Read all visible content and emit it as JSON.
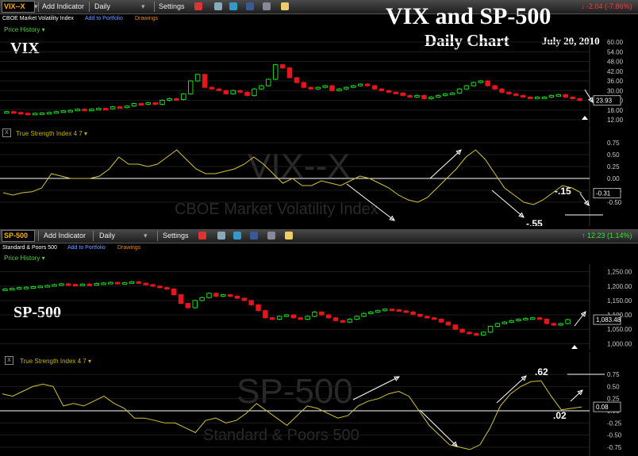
{
  "header": {
    "title": "VIX and SP-500",
    "subtitle": "Daily Chart",
    "date": "July 20, 2010"
  },
  "toolbar": {
    "add_indicator": "Add Indicator",
    "interval": "Daily",
    "settings": "Settings",
    "add_to_portfolio": "Add to Portfolio",
    "drawings": "Drawings",
    "price_history": "Price History ▾"
  },
  "vix": {
    "symbol": "VIX--X",
    "name": "CBOE Market Volatility Index",
    "change": "↓ -2.04 (-7.86%)",
    "panel_label": "VIX",
    "watermark": "VIX--X",
    "watermark_sub": "CBOE Market Volatility Index",
    "indicator_name": "True Strength Index 4 7 ▾",
    "last_price": "23.93",
    "tsi_last": "-0.31",
    "annot_low": "-.55",
    "annot_high": "-.15"
  },
  "spx": {
    "symbol": "SP-500",
    "name": "Standard & Poors 500",
    "change": "↑ 12.23 (1.14%)",
    "panel_label": "SP-500",
    "watermark": "SP-500",
    "watermark_sub": "Standard & Poors 500",
    "indicator_name": "True Strength Index 4 7 ▾",
    "last_price": "1,083.48",
    "tsi_last": "0.08",
    "annot_high": ".62",
    "annot_low": ".02"
  },
  "colors": {
    "up": "#1fd31f",
    "down": "#e3161b",
    "tsi": "#d4c437",
    "accent": "#ffb000",
    "change_down": "#ff3b3b",
    "change_up": "#3cdc3c"
  },
  "chart_data": [
    {
      "type": "candlestick",
      "title": "VIX",
      "ylim": [
        12,
        60
      ],
      "y_ticks": [
        "60.00",
        "54.00",
        "48.00",
        "42.00",
        "36.00",
        "30.00",
        "24.00",
        "18.00",
        "12.00"
      ],
      "y_tick_values": [
        60,
        54,
        48,
        42,
        36,
        30,
        24,
        18,
        12
      ],
      "closes": [
        17,
        16.5,
        16,
        15.8,
        16,
        16.2,
        16.5,
        17,
        17.5,
        17.8,
        18.5,
        18,
        18.5,
        19,
        18.8,
        20,
        19.5,
        20.5,
        22,
        21.5,
        22.5,
        21.5,
        24,
        25,
        24.5,
        28,
        36,
        40,
        32,
        31,
        30,
        28,
        30,
        29,
        27,
        31,
        33,
        37,
        46,
        44,
        38,
        35,
        32,
        31,
        32,
        33,
        30,
        31,
        32,
        33,
        34,
        33,
        31,
        30,
        29,
        28.5,
        27,
        26,
        27,
        25,
        26,
        27,
        28,
        28.5,
        31,
        33,
        35,
        36,
        33,
        31,
        29,
        28,
        27,
        26,
        25.5,
        26,
        26,
        27,
        27.5,
        26,
        25,
        23.93
      ],
      "last": 23.93
    },
    {
      "type": "line",
      "title": "True Strength Index 4 7",
      "ylim": [
        -0.75,
        0.75
      ],
      "y_ticks": [
        "0.75",
        "0.50",
        "0.25",
        "0.00",
        "-0.25",
        "-0.50"
      ],
      "y_tick_values": [
        0.75,
        0.5,
        0.25,
        0,
        -0.25,
        -0.5
      ],
      "values": [
        -0.3,
        -0.35,
        -0.3,
        -0.28,
        -0.2,
        0.1,
        0.05,
        0.0,
        0.0,
        0.0,
        0.05,
        0.2,
        0.45,
        0.3,
        0.3,
        0.25,
        0.3,
        0.45,
        0.6,
        0.4,
        0.2,
        0.1,
        0.1,
        0.15,
        0.2,
        0.3,
        0.45,
        0.3,
        0.1,
        -0.1,
        0.0,
        -0.15,
        -0.15,
        -0.05,
        -0.1,
        -0.15,
        -0.05,
        0.05,
        0.0,
        -0.1,
        -0.2,
        -0.35,
        -0.45,
        -0.5,
        -0.4,
        -0.2,
        0.0,
        0.2,
        0.45,
        0.6,
        0.4,
        0.1,
        -0.2,
        -0.35,
        -0.5,
        -0.55,
        -0.45,
        -0.3,
        -0.15,
        -0.2,
        -0.31
      ],
      "last": -0.31
    },
    {
      "type": "candlestick",
      "title": "SP-500",
      "ylim": [
        990,
        1260
      ],
      "y_ticks": [
        "1,250.00",
        "1,200.00",
        "1,150.00",
        "1,100.00",
        "1,050.00",
        "1,000.00"
      ],
      "y_tick_values": [
        1250,
        1200,
        1150,
        1100,
        1050,
        1000
      ],
      "closes": [
        1190,
        1192,
        1195,
        1196,
        1198,
        1200,
        1202,
        1205,
        1208,
        1206,
        1204,
        1207,
        1205,
        1209,
        1211,
        1213,
        1211,
        1212,
        1215,
        1210,
        1205,
        1200,
        1195,
        1190,
        1170,
        1140,
        1125,
        1150,
        1160,
        1175,
        1165,
        1170,
        1165,
        1158,
        1150,
        1135,
        1115,
        1090,
        1085,
        1095,
        1100,
        1090,
        1085,
        1095,
        1110,
        1100,
        1090,
        1080,
        1075,
        1085,
        1095,
        1105,
        1110,
        1115,
        1120,
        1118,
        1114,
        1110,
        1102,
        1095,
        1090,
        1085,
        1075,
        1065,
        1050,
        1040,
        1035,
        1030,
        1040,
        1060,
        1070,
        1075,
        1080,
        1085,
        1088,
        1090,
        1085,
        1070,
        1065,
        1070,
        1083.48
      ],
      "last": 1083.48
    },
    {
      "type": "line",
      "title": "True Strength Index 4 7",
      "ylim": [
        -0.85,
        0.85
      ],
      "y_ticks": [
        "0.75",
        "0.50",
        "0.25",
        "0.00",
        "-0.25",
        "-0.50",
        "-0.75"
      ],
      "y_tick_values": [
        0.75,
        0.5,
        0.25,
        0,
        -0.25,
        -0.5,
        -0.75
      ],
      "values": [
        0.35,
        0.3,
        0.4,
        0.5,
        0.55,
        0.5,
        0.1,
        0.15,
        0.1,
        0.2,
        0.3,
        0.15,
        0.05,
        -0.15,
        -0.15,
        -0.2,
        -0.25,
        -0.25,
        -0.35,
        -0.45,
        -0.2,
        -0.15,
        -0.25,
        -0.2,
        -0.05,
        0.15,
        0.0,
        -0.15,
        -0.3,
        -0.1,
        0.1,
        0.05,
        -0.05,
        -0.15,
        -0.1,
        0.1,
        0.2,
        0.25,
        0.35,
        0.4,
        0.3,
        0.0,
        -0.3,
        -0.5,
        -0.7,
        -0.75,
        -0.8,
        -0.7,
        -0.35,
        0.1,
        0.35,
        0.5,
        0.6,
        0.62,
        0.3,
        0.02,
        0.05,
        0.08
      ],
      "last": 0.08
    }
  ]
}
